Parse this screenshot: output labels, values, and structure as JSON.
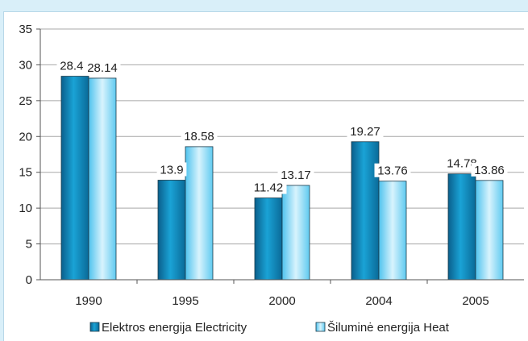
{
  "chart_data": {
    "type": "bar",
    "categories": [
      "1990",
      "1995",
      "2000",
      "2004",
      "2005"
    ],
    "series": [
      {
        "name": "Elektros energija  Electricity",
        "values": [
          28.41,
          13.9,
          11.42,
          19.27,
          14.78
        ],
        "color": "#0e86b8"
      },
      {
        "name": "Šiluminė energija  Heat",
        "values": [
          28.14,
          18.58,
          13.17,
          13.76,
          13.86
        ],
        "color": "#6fd0f2"
      }
    ],
    "ylim": [
      0,
      35
    ],
    "yticks": [
      0,
      5,
      10,
      15,
      20,
      25,
      30,
      35
    ],
    "grid": true,
    "legend": "bottom"
  }
}
